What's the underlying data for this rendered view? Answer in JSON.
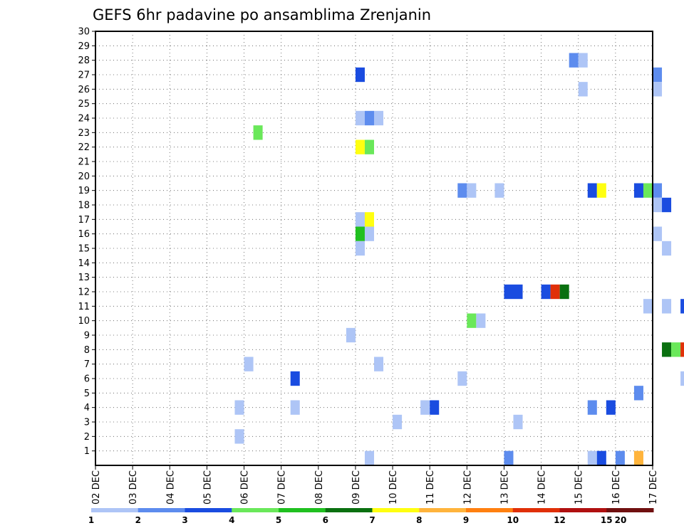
{
  "chart_data": {
    "type": "heatmap",
    "title": "GEFS 6hr padavine po ansamblima Zrenjanin",
    "x_tick_labels": [
      "02 DEC",
      "03 DEC",
      "04 DEC",
      "05 DEC",
      "06 DEC",
      "07 DEC",
      "08 DEC",
      "09 DEC",
      "10 DEC",
      "11 DEC",
      "12 DEC",
      "13 DEC",
      "14 DEC",
      "15 DEC",
      "16 DEC",
      "17 DEC"
    ],
    "x_unit": "days from 02 DEC 00Z",
    "y_tick_labels": [
      "1",
      "2",
      "3",
      "4",
      "5",
      "6",
      "7",
      "8",
      "9",
      "10",
      "11",
      "12",
      "13",
      "14",
      "15",
      "16",
      "17",
      "18",
      "19",
      "20",
      "21",
      "22",
      "23",
      "24",
      "25",
      "26",
      "27",
      "28",
      "29",
      "30"
    ],
    "ylim": [
      0,
      30
    ],
    "grid": true,
    "colorbar": {
      "colors": [
        "#aec5f6",
        "#5d8cee",
        "#1a4ce0",
        "#6ae85a",
        "#20c020",
        "#0a7010",
        "#ffff10",
        "#ffb43c",
        "#ff8010",
        "#e03008",
        "#b01010",
        "#701010"
      ],
      "labels": [
        "1",
        "2",
        "3",
        "4",
        "5",
        "6",
        "7",
        "8",
        "9",
        "10",
        "12",
        "15",
        "20"
      ]
    },
    "cells": [
      {
        "day": 4.25,
        "member": 23,
        "level": 3
      },
      {
        "day": 7.0,
        "member": 27,
        "level": 2
      },
      {
        "day": 7.0,
        "member": 24,
        "level": 0
      },
      {
        "day": 7.25,
        "member": 24,
        "level": 1
      },
      {
        "day": 7.5,
        "member": 24,
        "level": 0
      },
      {
        "day": 7.0,
        "member": 22,
        "level": 6
      },
      {
        "day": 7.25,
        "member": 22,
        "level": 3
      },
      {
        "day": 7.0,
        "member": 17,
        "level": 0
      },
      {
        "day": 7.25,
        "member": 17,
        "level": 6
      },
      {
        "day": 7.0,
        "member": 16,
        "level": 4
      },
      {
        "day": 7.25,
        "member": 16,
        "level": 0
      },
      {
        "day": 7.0,
        "member": 15,
        "level": 0
      },
      {
        "day": 12.75,
        "member": 28,
        "level": 1
      },
      {
        "day": 13.0,
        "member": 28,
        "level": 0
      },
      {
        "day": 13.0,
        "member": 26,
        "level": 0
      },
      {
        "day": 15.0,
        "member": 27,
        "level": 1
      },
      {
        "day": 15.0,
        "member": 26,
        "level": 0
      },
      {
        "day": 9.75,
        "member": 19,
        "level": 1
      },
      {
        "day": 10.0,
        "member": 19,
        "level": 0
      },
      {
        "day": 10.75,
        "member": 19,
        "level": 0
      },
      {
        "day": 13.25,
        "member": 19,
        "level": 2
      },
      {
        "day": 13.5,
        "member": 19,
        "level": 6
      },
      {
        "day": 14.5,
        "member": 19,
        "level": 2
      },
      {
        "day": 14.75,
        "member": 19,
        "level": 3
      },
      {
        "day": 15.0,
        "member": 19,
        "level": 1
      },
      {
        "day": 15.0,
        "member": 18,
        "level": 0
      },
      {
        "day": 15.25,
        "member": 18,
        "level": 2
      },
      {
        "day": 15.0,
        "member": 16,
        "level": 0
      },
      {
        "day": 15.25,
        "member": 15,
        "level": 0
      },
      {
        "day": 11.0,
        "member": 12,
        "level": 2
      },
      {
        "day": 11.25,
        "member": 12,
        "level": 2
      },
      {
        "day": 12.0,
        "member": 12,
        "level": 2
      },
      {
        "day": 12.25,
        "member": 12,
        "level": 9
      },
      {
        "day": 12.5,
        "member": 12,
        "level": 5
      },
      {
        "day": 14.75,
        "member": 11,
        "level": 0
      },
      {
        "day": 15.25,
        "member": 11,
        "level": 0
      },
      {
        "day": 15.75,
        "member": 11,
        "level": 2
      },
      {
        "day": 10.0,
        "member": 10,
        "level": 3
      },
      {
        "day": 10.25,
        "member": 10,
        "level": 0
      },
      {
        "day": 6.75,
        "member": 9,
        "level": 0
      },
      {
        "day": 15.25,
        "member": 8,
        "level": 5
      },
      {
        "day": 15.5,
        "member": 8,
        "level": 3
      },
      {
        "day": 15.75,
        "member": 8,
        "level": 9
      },
      {
        "day": 4.0,
        "member": 7,
        "level": 0
      },
      {
        "day": 7.5,
        "member": 7,
        "level": 0
      },
      {
        "day": 5.25,
        "member": 6,
        "level": 2
      },
      {
        "day": 9.75,
        "member": 6,
        "level": 0
      },
      {
        "day": 15.75,
        "member": 6,
        "level": 0
      },
      {
        "day": 14.5,
        "member": 5,
        "level": 1
      },
      {
        "day": 3.75,
        "member": 4,
        "level": 0
      },
      {
        "day": 5.25,
        "member": 4,
        "level": 0
      },
      {
        "day": 8.75,
        "member": 4,
        "level": 0
      },
      {
        "day": 9.0,
        "member": 4,
        "level": 2
      },
      {
        "day": 13.25,
        "member": 4,
        "level": 1
      },
      {
        "day": 13.75,
        "member": 4,
        "level": 2
      },
      {
        "day": 8.0,
        "member": 3,
        "level": 0
      },
      {
        "day": 11.25,
        "member": 3,
        "level": 0
      },
      {
        "day": 3.75,
        "member": 2,
        "level": 0
      },
      {
        "day": 7.25,
        "member": 0.5,
        "level": 0
      },
      {
        "day": 11.0,
        "member": 0.5,
        "level": 1
      },
      {
        "day": 13.25,
        "member": 0.5,
        "level": 0
      },
      {
        "day": 13.5,
        "member": 0.5,
        "level": 2
      },
      {
        "day": 14.0,
        "member": 0.5,
        "level": 1
      },
      {
        "day": 14.5,
        "member": 0.5,
        "level": 7
      }
    ]
  }
}
